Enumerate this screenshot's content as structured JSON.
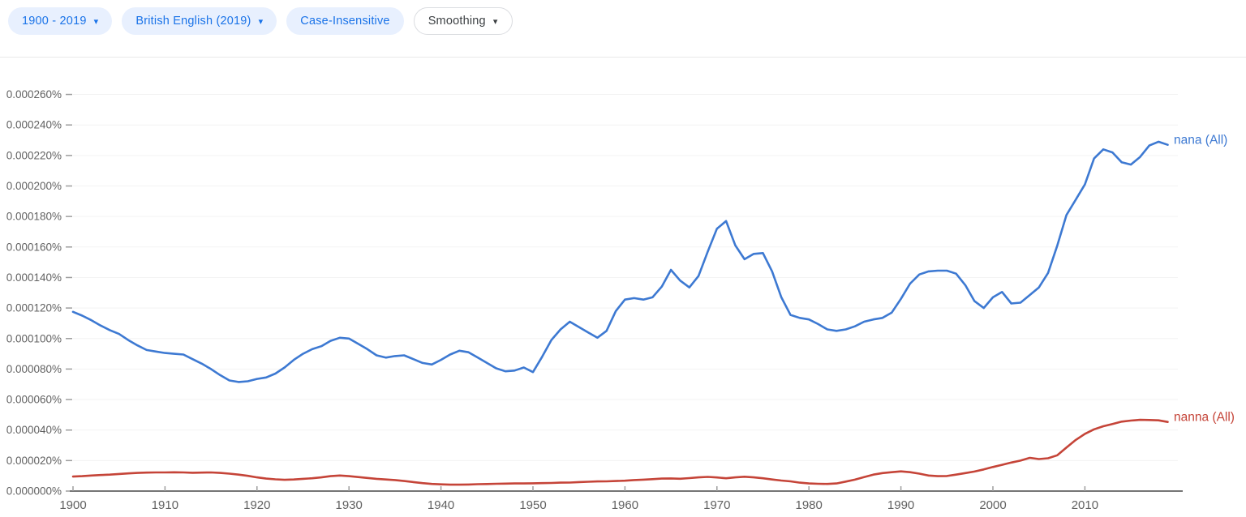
{
  "header": {
    "chips": [
      {
        "label": "1900 - 2019",
        "caret": true,
        "style": "filled"
      },
      {
        "label": "British English (2019)",
        "caret": true,
        "style": "filled"
      },
      {
        "label": "Case-Insensitive",
        "caret": false,
        "style": "filled"
      },
      {
        "label": "Smoothing",
        "caret": true,
        "style": "outlined"
      }
    ],
    "colors": {
      "filled_chip_bg": "#e8f0fe",
      "filled_chip_text": "#1a73e8",
      "outlined_chip_border": "#dadce0",
      "outlined_chip_text": "#3c4043"
    }
  },
  "chart_data": {
    "type": "line",
    "title": "",
    "unit": "micro-percent (value 117.5 means 0.0001175% of corpus)",
    "x_start": 1900,
    "x_end": 2019,
    "x_step": 1,
    "x_ticks": [
      1900,
      1910,
      1920,
      1930,
      1940,
      1950,
      1960,
      1970,
      1980,
      1990,
      2000,
      2010
    ],
    "ylim": [
      0,
      284
    ],
    "grid": "horizontal, very faint",
    "legend_position": "line-end labels, right side",
    "y_ticks": [
      {
        "value": 0,
        "label": "0.000000%"
      },
      {
        "value": 20,
        "label": "0.000020%"
      },
      {
        "value": 40,
        "label": "0.000040%"
      },
      {
        "value": 60,
        "label": "0.000060%"
      },
      {
        "value": 80,
        "label": "0.000080%"
      },
      {
        "value": 100,
        "label": "0.000100%"
      },
      {
        "value": 120,
        "label": "0.000120%"
      },
      {
        "value": 140,
        "label": "0.000140%"
      },
      {
        "value": 160,
        "label": "0.000160%"
      },
      {
        "value": 180,
        "label": "0.000180%"
      },
      {
        "value": 200,
        "label": "0.000200%"
      },
      {
        "value": 220,
        "label": "0.000220%"
      },
      {
        "value": 240,
        "label": "0.000240%"
      },
      {
        "value": 260,
        "label": "0.000260%"
      }
    ],
    "series": [
      {
        "name": "nana (All)",
        "color": "#3d79d2",
        "values": [
          117.5,
          115,
          112,
          108.5,
          105.5,
          103,
          99,
          95.5,
          92.5,
          91.5,
          90.5,
          90,
          89.5,
          86.5,
          83.5,
          80,
          76,
          72.5,
          71.5,
          72,
          73.5,
          74.5,
          77,
          81,
          86,
          90,
          93,
          95,
          98.5,
          100.5,
          100,
          96.5,
          93,
          89,
          87.5,
          88.5,
          89,
          86.5,
          84,
          83,
          86,
          89.5,
          92,
          91,
          87.5,
          84,
          80.5,
          78.5,
          79,
          81,
          78,
          88,
          99,
          106,
          111,
          107.5,
          104,
          100.5,
          105,
          118,
          125.5,
          126.5,
          125.5,
          127,
          134,
          145,
          138,
          133.5,
          141,
          157,
          172,
          177,
          161,
          152,
          155.5,
          156,
          144,
          127,
          115.5,
          113.5,
          112.5,
          109.5,
          106,
          105,
          106,
          108,
          111,
          112.5,
          113.5,
          117,
          126,
          136,
          142,
          144,
          144.5,
          144.5,
          142.5,
          135,
          124.5,
          120,
          127,
          130.5,
          123,
          123.5,
          128.5,
          133.5,
          143,
          161,
          181,
          191,
          201,
          218,
          224,
          222,
          215.5,
          214,
          219,
          226.5,
          229,
          227
        ]
      },
      {
        "name": "nanna (All)",
        "color": "#c54438",
        "values": [
          9.5,
          9.8,
          10.2,
          10.5,
          10.8,
          11.2,
          11.6,
          11.9,
          12.1,
          12.2,
          12.2,
          12.3,
          12.2,
          12,
          12.1,
          12.2,
          11.9,
          11.4,
          10.8,
          10,
          9,
          8.2,
          7.7,
          7.4,
          7.6,
          8,
          8.4,
          9,
          9.8,
          10.2,
          9.8,
          9.2,
          8.6,
          8,
          7.6,
          7.2,
          6.6,
          5.9,
          5.2,
          4.7,
          4.4,
          4.2,
          4.2,
          4.3,
          4.5,
          4.6,
          4.8,
          4.9,
          5,
          5,
          5.1,
          5.2,
          5.3,
          5.5,
          5.6,
          5.9,
          6.1,
          6.3,
          6.4,
          6.6,
          6.8,
          7.2,
          7.5,
          7.8,
          8.2,
          8.3,
          8.1,
          8.5,
          9,
          9.3,
          8.9,
          8.4,
          9,
          9.4,
          9,
          8.4,
          7.6,
          6.9,
          6.4,
          5.5,
          5,
          4.8,
          4.7,
          5,
          6.2,
          7.5,
          9.2,
          10.8,
          11.8,
          12.4,
          12.9,
          12.4,
          11.4,
          10.2,
          9.8,
          9.9,
          10.8,
          11.8,
          12.8,
          14.2,
          15.8,
          17.2,
          18.7,
          20,
          21.8,
          21,
          21.5,
          23.5,
          28.5,
          33.5,
          37.5,
          40.5,
          42.5,
          44,
          45.5,
          46.2,
          46.7,
          46.6,
          46.4,
          45.3
        ]
      }
    ]
  }
}
